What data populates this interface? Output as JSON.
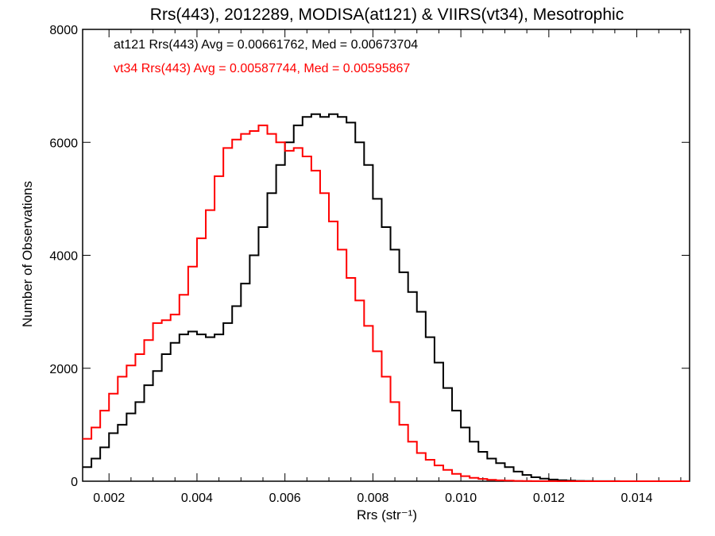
{
  "chart_data": {
    "type": "line",
    "style": "step-histogram",
    "title": "Rrs(443), 2012289, MODISA(at121) & VIIRS(vt34), Mesotrophic",
    "xlabel": "Rrs (str⁻¹)",
    "ylabel": "Number of Observations",
    "xlim": [
      0.0014,
      0.0152
    ],
    "ylim": [
      0,
      8000
    ],
    "x_ticks": [
      "0.002",
      "0.004",
      "0.006",
      "0.008",
      "0.010",
      "0.012",
      "0.014"
    ],
    "y_ticks": [
      "0",
      "2000",
      "4000",
      "6000",
      "8000"
    ],
    "annotations": [
      {
        "text": "at121 Rrs(443) Avg = 0.00661762, Med = 0.00673704",
        "color": "#000000"
      },
      {
        "text": "vt34 Rrs(443) Avg = 0.00587744, Med = 0.00595867",
        "color": "#ff0000"
      }
    ],
    "series": [
      {
        "color": "#000000",
        "x": [
          0.0014,
          0.0016,
          0.0018,
          0.002,
          0.0022,
          0.0024,
          0.0026,
          0.0028,
          0.003,
          0.0032,
          0.0034,
          0.0036,
          0.0038,
          0.004,
          0.0042,
          0.0044,
          0.0046,
          0.0048,
          0.005,
          0.0052,
          0.0054,
          0.0056,
          0.0058,
          0.006,
          0.0062,
          0.0064,
          0.0066,
          0.0068,
          0.007,
          0.0072,
          0.0074,
          0.0076,
          0.0078,
          0.008,
          0.0082,
          0.0084,
          0.0086,
          0.0088,
          0.009,
          0.0092,
          0.0094,
          0.0096,
          0.0098,
          0.01,
          0.0102,
          0.0104,
          0.0106,
          0.0108,
          0.011,
          0.0112,
          0.0114,
          0.0116,
          0.0118,
          0.012,
          0.0122,
          0.0124,
          0.0126,
          0.0128,
          0.013,
          0.0132,
          0.0134,
          0.0136,
          0.0138,
          0.014,
          0.0142,
          0.0144,
          0.0146,
          0.0148,
          0.015,
          0.0152
        ],
        "values": [
          250,
          400,
          600,
          850,
          1000,
          1200,
          1400,
          1700,
          1950,
          2250,
          2450,
          2600,
          2650,
          2600,
          2550,
          2600,
          2800,
          3100,
          3500,
          4000,
          4500,
          5100,
          5600,
          6000,
          6300,
          6450,
          6500,
          6450,
          6500,
          6450,
          6350,
          6000,
          5600,
          5000,
          4500,
          4100,
          3700,
          3350,
          3000,
          2550,
          2100,
          1650,
          1250,
          950,
          700,
          520,
          400,
          320,
          250,
          170,
          110,
          70,
          45,
          30,
          18,
          10,
          6,
          3,
          2,
          1,
          1,
          0,
          0,
          0,
          0,
          0,
          0,
          0,
          0,
          0
        ]
      },
      {
        "color": "#ff0000",
        "x": [
          0.0014,
          0.0016,
          0.0018,
          0.002,
          0.0022,
          0.0024,
          0.0026,
          0.0028,
          0.003,
          0.0032,
          0.0034,
          0.0036,
          0.0038,
          0.004,
          0.0042,
          0.0044,
          0.0046,
          0.0048,
          0.005,
          0.0052,
          0.0054,
          0.0056,
          0.0058,
          0.006,
          0.0062,
          0.0064,
          0.0066,
          0.0068,
          0.007,
          0.0072,
          0.0074,
          0.0076,
          0.0078,
          0.008,
          0.0082,
          0.0084,
          0.0086,
          0.0088,
          0.009,
          0.0092,
          0.0094,
          0.0096,
          0.0098,
          0.01,
          0.0102,
          0.0104,
          0.0106,
          0.0108,
          0.011,
          0.0112,
          0.0114,
          0.0116,
          0.0118,
          0.012,
          0.0122,
          0.0124,
          0.0126,
          0.0128,
          0.013,
          0.0132,
          0.0134,
          0.0136,
          0.0138,
          0.014,
          0.0142,
          0.0144,
          0.0146,
          0.0148,
          0.015,
          0.0152
        ],
        "values": [
          750,
          950,
          1250,
          1550,
          1850,
          2050,
          2250,
          2500,
          2800,
          2850,
          2950,
          3300,
          3800,
          4300,
          4800,
          5400,
          5900,
          6050,
          6150,
          6200,
          6300,
          6150,
          6000,
          5850,
          5900,
          5750,
          5500,
          5100,
          4600,
          4100,
          3600,
          3200,
          2750,
          2300,
          1850,
          1400,
          1000,
          700,
          500,
          380,
          280,
          200,
          130,
          90,
          60,
          40,
          25,
          15,
          10,
          6,
          3,
          2,
          1,
          1,
          0,
          0,
          0,
          0,
          0,
          0,
          0,
          0,
          0,
          0,
          0,
          0,
          0,
          0,
          0,
          0
        ]
      }
    ]
  }
}
